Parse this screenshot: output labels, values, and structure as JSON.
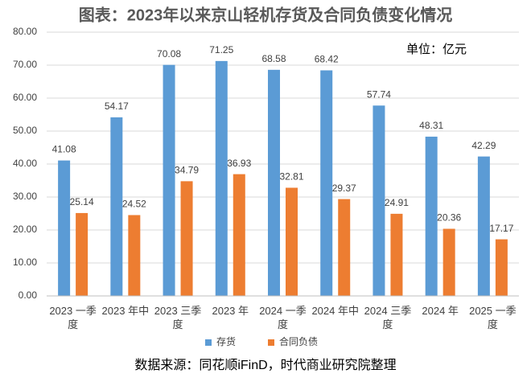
{
  "chart_data": {
    "type": "bar",
    "title": "图表：2023年以来京山轻机存货及合同负债变化情况",
    "annotation": "单位：亿元",
    "source": "数据来源：同花顺iFinD，时代商业研究院整理",
    "categories": [
      "2023 一季度",
      "2023 年中",
      "2023 三季度",
      "2023 年",
      "2024 一季度",
      "2024 年中",
      "2024 三季度",
      "2024 年",
      "2025 一季度"
    ],
    "series": [
      {
        "name": "存货",
        "color": "#5b9bd5",
        "values": [
          41.08,
          54.17,
          70.08,
          71.25,
          68.58,
          68.42,
          57.74,
          48.31,
          42.29
        ]
      },
      {
        "name": "合同负债",
        "color": "#ed7d31",
        "values": [
          25.14,
          24.52,
          34.79,
          36.93,
          32.81,
          29.37,
          24.91,
          20.36,
          17.17
        ]
      }
    ],
    "ylim": [
      0,
      80
    ],
    "yticks": [
      {
        "value": 0,
        "label": "0.00"
      },
      {
        "value": 10,
        "label": "10.00"
      },
      {
        "value": 20,
        "label": "20.00"
      },
      {
        "value": 30,
        "label": "30.00"
      },
      {
        "value": 40,
        "label": "40.00"
      },
      {
        "value": 50,
        "label": "50.00"
      },
      {
        "value": 60,
        "label": "60.00"
      },
      {
        "value": 70,
        "label": "70.00"
      },
      {
        "value": 80,
        "label": "80.00"
      }
    ],
    "grid": true,
    "legend": "bottom"
  }
}
